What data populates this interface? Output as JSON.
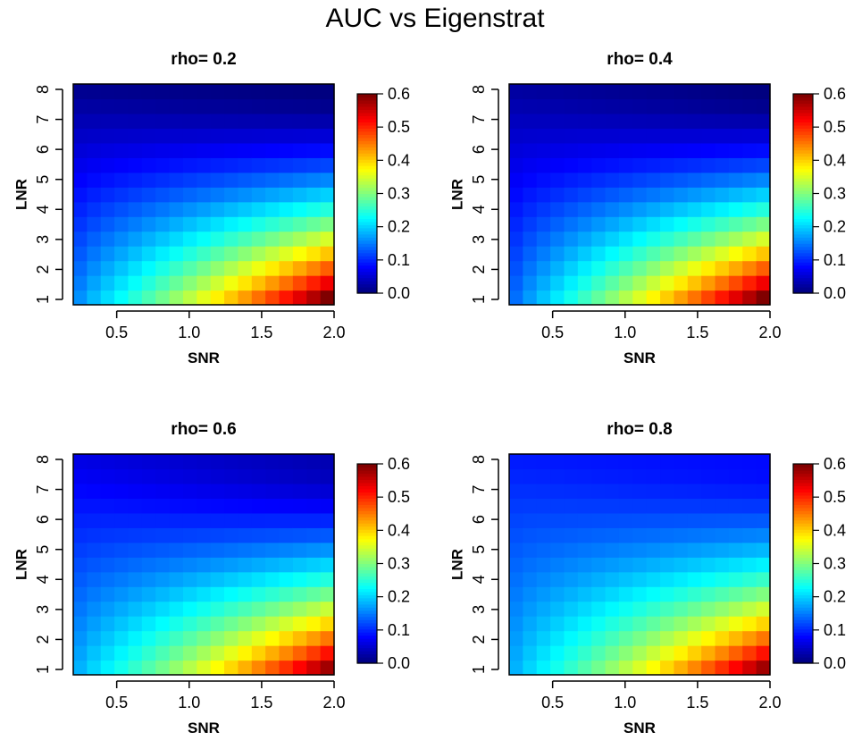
{
  "figure": {
    "title": "AUC vs Eigenstrat"
  },
  "chart_data": [
    {
      "type": "heatmap",
      "title": "rho= 0.2",
      "rho": 0.2,
      "xlabel": "SNR",
      "ylabel": "LNR",
      "x_ticks": [
        "0.5",
        "1.0",
        "1.5",
        "2.0"
      ],
      "y_ticks": [
        "1",
        "2",
        "3",
        "4",
        "5",
        "6",
        "7",
        "8"
      ],
      "xlim": [
        0.2,
        2.0
      ],
      "ylim": [
        1,
        8
      ],
      "colorbar": {
        "min": 0.0,
        "max": 0.6,
        "ticks": [
          "0.0",
          "0.1",
          "0.2",
          "0.3",
          "0.4",
          "0.5",
          "0.6"
        ],
        "colormap": "jet"
      },
      "corner_values": {
        "snr_2.0_lnr_1": 0.6,
        "snr_0.2_lnr_1": 0.16,
        "snr_2.0_lnr_8": 0.0,
        "snr_0.2_lnr_8": 0.01
      }
    },
    {
      "type": "heatmap",
      "title": "rho= 0.4",
      "rho": 0.4,
      "xlabel": "SNR",
      "ylabel": "LNR",
      "x_ticks": [
        "0.5",
        "1.0",
        "1.5",
        "2.0"
      ],
      "y_ticks": [
        "1",
        "2",
        "3",
        "4",
        "5",
        "6",
        "7",
        "8"
      ],
      "xlim": [
        0.2,
        2.0
      ],
      "ylim": [
        1,
        8
      ],
      "colorbar": {
        "min": 0.0,
        "max": 0.6,
        "ticks": [
          "0.0",
          "0.1",
          "0.2",
          "0.3",
          "0.4",
          "0.5",
          "0.6"
        ],
        "colormap": "jet"
      },
      "corner_values": {
        "snr_2.0_lnr_1": 0.6,
        "snr_0.2_lnr_1": 0.14,
        "snr_2.0_lnr_8": 0.0,
        "snr_0.2_lnr_8": 0.02
      }
    },
    {
      "type": "heatmap",
      "title": "rho= 0.6",
      "rho": 0.6,
      "xlabel": "SNR",
      "ylabel": "LNR",
      "x_ticks": [
        "0.5",
        "1.0",
        "1.5",
        "2.0"
      ],
      "y_ticks": [
        "1",
        "2",
        "3",
        "4",
        "5",
        "6",
        "7",
        "8"
      ],
      "xlim": [
        0.2,
        2.0
      ],
      "ylim": [
        1,
        8
      ],
      "colorbar": {
        "min": 0.0,
        "max": 0.6,
        "ticks": [
          "0.0",
          "0.1",
          "0.2",
          "0.3",
          "0.4",
          "0.5",
          "0.6"
        ],
        "colormap": "jet"
      },
      "corner_values": {
        "snr_2.0_lnr_1": 0.58,
        "snr_0.2_lnr_1": 0.18,
        "snr_2.0_lnr_8": 0.03,
        "snr_0.2_lnr_8": 0.06
      }
    },
    {
      "type": "heatmap",
      "title": "rho= 0.8",
      "rho": 0.8,
      "xlabel": "SNR",
      "ylabel": "LNR",
      "x_ticks": [
        "0.5",
        "1.0",
        "1.5",
        "2.0"
      ],
      "y_ticks": [
        "1",
        "2",
        "3",
        "4",
        "5",
        "6",
        "7",
        "8"
      ],
      "xlim": [
        0.2,
        2.0
      ],
      "ylim": [
        1,
        8
      ],
      "colorbar": {
        "min": 0.0,
        "max": 0.6,
        "ticks": [
          "0.0",
          "0.1",
          "0.2",
          "0.3",
          "0.4",
          "0.5",
          "0.6"
        ],
        "colormap": "jet"
      },
      "corner_values": {
        "snr_2.0_lnr_1": 0.58,
        "snr_0.2_lnr_1": 0.18,
        "snr_2.0_lnr_8": 0.08,
        "snr_0.2_lnr_8": 0.09
      }
    }
  ]
}
